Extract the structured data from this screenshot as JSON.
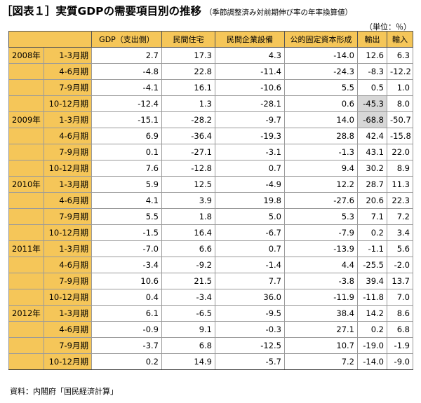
{
  "header": {
    "title": "［図表１］実質GDPの需要項目別の推移",
    "subtitle": "（季節調整済み対前期伸び率の年率換算値）",
    "unit": "（単位：％）"
  },
  "table": {
    "columns": [
      "GDP（支出側）",
      "民間住宅",
      "民間企業設備",
      "公的固定資本形成",
      "輸出",
      "輸入"
    ],
    "rows": [
      {
        "year": "2008年",
        "period": "1-3月期",
        "values": [
          "2.7",
          "17.3",
          "4.3",
          "-14.0",
          "12.6",
          "6.3"
        ]
      },
      {
        "year": "",
        "period": "4-6月期",
        "values": [
          "-4.8",
          "22.8",
          "-11.4",
          "-24.3",
          "-8.3",
          "-12.2"
        ]
      },
      {
        "year": "",
        "period": "7-9月期",
        "values": [
          "-4.1",
          "16.1",
          "-10.6",
          "5.5",
          "0.5",
          "1.0"
        ]
      },
      {
        "year": "",
        "period": "10-12月期",
        "values": [
          "-12.4",
          "1.3",
          "-28.1",
          "0.6",
          "-45.3",
          "8.0"
        ]
      },
      {
        "year": "2009年",
        "period": "1-3月期",
        "values": [
          "-15.1",
          "-28.2",
          "-9.7",
          "14.0",
          "-68.8",
          "-50.7"
        ]
      },
      {
        "year": "",
        "period": "4-6月期",
        "values": [
          "6.9",
          "-36.4",
          "-19.3",
          "28.8",
          "42.4",
          "-15.8"
        ]
      },
      {
        "year": "",
        "period": "7-9月期",
        "values": [
          "0.1",
          "-27.1",
          "-3.1",
          "-1.3",
          "43.1",
          "22.0"
        ]
      },
      {
        "year": "",
        "period": "10-12月期",
        "values": [
          "7.6",
          "-12.8",
          "0.7",
          "9.4",
          "30.2",
          "8.9"
        ]
      },
      {
        "year": "2010年",
        "period": "1-3月期",
        "values": [
          "5.9",
          "12.5",
          "-4.9",
          "12.2",
          "28.7",
          "11.3"
        ]
      },
      {
        "year": "",
        "period": "4-6月期",
        "values": [
          "4.1",
          "3.9",
          "19.8",
          "-27.6",
          "20.6",
          "22.3"
        ]
      },
      {
        "year": "",
        "period": "7-9月期",
        "values": [
          "5.5",
          "1.8",
          "5.0",
          "5.3",
          "7.1",
          "7.2"
        ]
      },
      {
        "year": "",
        "period": "10-12月期",
        "values": [
          "-1.5",
          "16.4",
          "-6.7",
          "-7.9",
          "0.2",
          "3.4"
        ]
      },
      {
        "year": "2011年",
        "period": "1-3月期",
        "values": [
          "-7.0",
          "6.6",
          "0.7",
          "-13.9",
          "-1.1",
          "5.6"
        ]
      },
      {
        "year": "",
        "period": "4-6月期",
        "values": [
          "-3.4",
          "-9.2",
          "-1.4",
          "4.4",
          "-25.5",
          "-2.0"
        ]
      },
      {
        "year": "",
        "period": "7-9月期",
        "values": [
          "10.6",
          "21.5",
          "7.7",
          "-3.8",
          "39.4",
          "13.7"
        ]
      },
      {
        "year": "",
        "period": "10-12月期",
        "values": [
          "0.4",
          "-3.4",
          "36.0",
          "-11.9",
          "-11.8",
          "7.0"
        ]
      },
      {
        "year": "2012年",
        "period": "1-3月期",
        "values": [
          "6.1",
          "-6.5",
          "-9.5",
          "38.4",
          "14.2",
          "8.6"
        ]
      },
      {
        "year": "",
        "period": "4-6月期",
        "values": [
          "-0.9",
          "9.1",
          "-0.3",
          "27.1",
          "0.2",
          "6.8"
        ]
      },
      {
        "year": "",
        "period": "7-9月期",
        "values": [
          "-3.7",
          "6.8",
          "-12.5",
          "10.7",
          "-19.0",
          "-1.9"
        ]
      },
      {
        "year": "",
        "period": "10-12月期",
        "values": [
          "0.2",
          "14.9",
          "-5.7",
          "7.2",
          "-14.0",
          "-9.0"
        ]
      }
    ],
    "highlight_color": "#d7d7d7",
    "header_color": "#f5c659"
  },
  "footer": {
    "source": "資料：内閣府「国民経済計算」"
  }
}
